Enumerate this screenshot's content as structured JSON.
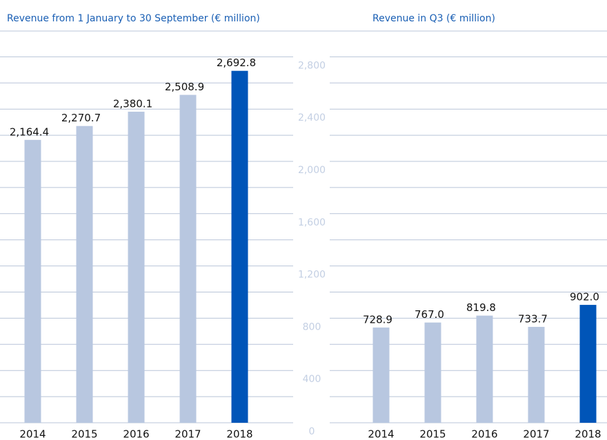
{
  "chart_data": [
    {
      "type": "bar",
      "title": "Revenue from 1 January to 30 September (€ million)",
      "categories": [
        "2014",
        "2015",
        "2016",
        "2017",
        "2018"
      ],
      "values": [
        2164.4,
        2270.7,
        2380.1,
        2508.9,
        2692.8
      ],
      "value_labels": [
        "2,164.4",
        "2,270.7",
        "2,380.1",
        "2,508.9",
        "2,692.8"
      ],
      "colors": [
        "#b8c7e0",
        "#b8c7e0",
        "#b8c7e0",
        "#b8c7e0",
        "#0055b8"
      ],
      "ylim": [
        0,
        2800
      ],
      "yticks": [
        0,
        400,
        800,
        {
          "value": 1200,
          "label": "1,200"
        },
        {
          "value": 1600,
          "label": "1,600"
        },
        {
          "value": 2000,
          "label": "2,000"
        },
        {
          "value": 2400,
          "label": "2,400"
        },
        {
          "value": 2800,
          "label": "2,800"
        }
      ],
      "minor_yticks": [
        200,
        600,
        1000,
        1400,
        1800,
        2200,
        2600
      ],
      "grid": true
    },
    {
      "type": "bar",
      "title": "Revenue in Q3 (€ million)",
      "categories": [
        "2014",
        "2015",
        "2016",
        "2017",
        "2018"
      ],
      "values": [
        728.9,
        767.0,
        819.8,
        733.7,
        902.0
      ],
      "value_labels": [
        "728.9",
        "767.0",
        "819.8",
        "733.7",
        "902.0"
      ],
      "colors": [
        "#b8c7e0",
        "#b8c7e0",
        "#b8c7e0",
        "#b8c7e0",
        "#0055b8"
      ],
      "ylim": [
        0,
        2800
      ]
    }
  ]
}
